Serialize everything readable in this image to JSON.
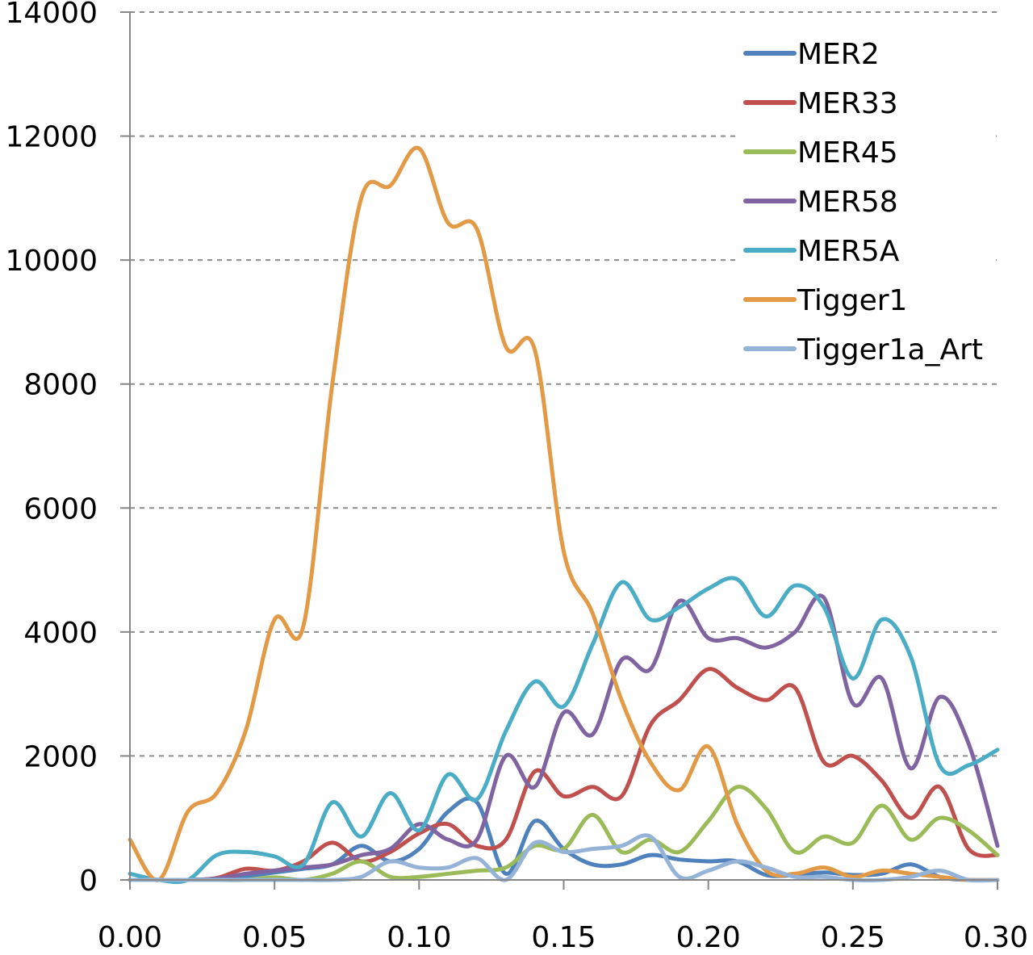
{
  "chart_data": {
    "type": "line",
    "title": "",
    "xlabel": "",
    "ylabel": "",
    "xlim": [
      0.0,
      0.3
    ],
    "ylim": [
      0,
      14000
    ],
    "x_ticks": [
      0.0,
      0.05,
      0.1,
      0.15,
      0.2,
      0.25,
      0.3
    ],
    "x_tick_labels": [
      "0.00",
      "0.05",
      "0.10",
      "0.15",
      "0.20",
      "0.25",
      "0.30"
    ],
    "y_ticks": [
      0,
      2000,
      4000,
      6000,
      8000,
      10000,
      12000,
      14000
    ],
    "y_tick_labels": [
      "0",
      "2000",
      "4000",
      "6000",
      "8000",
      "10000",
      "12000",
      "14000"
    ],
    "grid": "horizontal-dashed",
    "legend_position": "top-right",
    "x": [
      0.0,
      0.01,
      0.02,
      0.03,
      0.04,
      0.05,
      0.06,
      0.07,
      0.08,
      0.09,
      0.1,
      0.11,
      0.12,
      0.13,
      0.14,
      0.15,
      0.16,
      0.17,
      0.18,
      0.19,
      0.2,
      0.21,
      0.22,
      0.23,
      0.24,
      0.25,
      0.26,
      0.27,
      0.28,
      0.29,
      0.3
    ],
    "series": [
      {
        "name": "MER2",
        "color": "#4f81bd",
        "values": [
          0,
          0,
          0,
          20,
          60,
          120,
          180,
          250,
          550,
          300,
          500,
          1100,
          1250,
          100,
          950,
          500,
          250,
          250,
          400,
          330,
          300,
          300,
          80,
          80,
          120,
          80,
          100,
          250,
          50,
          0,
          0
        ]
      },
      {
        "name": "MER33",
        "color": "#c0504d",
        "values": [
          0,
          0,
          0,
          30,
          180,
          150,
          300,
          600,
          300,
          450,
          750,
          900,
          550,
          650,
          1750,
          1350,
          1500,
          1350,
          2500,
          2900,
          3400,
          3100,
          2900,
          3100,
          1900,
          2000,
          1600,
          1000,
          1500,
          500,
          400
        ]
      },
      {
        "name": "MER45",
        "color": "#9bbb59",
        "values": [
          0,
          0,
          0,
          0,
          0,
          40,
          0,
          100,
          300,
          50,
          50,
          100,
          150,
          200,
          550,
          500,
          1050,
          450,
          650,
          450,
          950,
          1500,
          1150,
          450,
          700,
          600,
          1200,
          650,
          1000,
          800,
          400
        ]
      },
      {
        "name": "MER58",
        "color": "#8064a2",
        "values": [
          0,
          0,
          0,
          20,
          100,
          150,
          200,
          250,
          400,
          500,
          900,
          650,
          650,
          2000,
          1500,
          2700,
          2350,
          3550,
          3400,
          4500,
          3900,
          3900,
          3750,
          4000,
          4550,
          2850,
          3250,
          1800,
          2950,
          2200,
          550
        ]
      },
      {
        "name": "MER5A",
        "color": "#4bacc6",
        "values": [
          100,
          0,
          0,
          400,
          450,
          380,
          250,
          1250,
          700,
          1400,
          800,
          1700,
          1300,
          2400,
          3200,
          2800,
          3800,
          4800,
          4200,
          4400,
          4700,
          4850,
          4250,
          4750,
          4400,
          3250,
          4200,
          3600,
          1850,
          1850,
          2100
        ]
      },
      {
        "name": "Tigger1",
        "color": "#e29a47",
        "values": [
          650,
          0,
          1100,
          1400,
          2400,
          4200,
          4100,
          8000,
          11000,
          11200,
          11800,
          10600,
          10500,
          8600,
          8550,
          5300,
          4300,
          2900,
          1900,
          1450,
          2150,
          900,
          150,
          100,
          200,
          50,
          150,
          100,
          50,
          0,
          0
        ]
      },
      {
        "name": "Tigger1a_Art",
        "color": "#95b3d7",
        "values": [
          0,
          0,
          0,
          0,
          0,
          0,
          0,
          0,
          50,
          300,
          200,
          200,
          350,
          0,
          600,
          450,
          500,
          550,
          700,
          50,
          150,
          300,
          200,
          50,
          50,
          0,
          0,
          50,
          150,
          0,
          0
        ]
      }
    ]
  }
}
